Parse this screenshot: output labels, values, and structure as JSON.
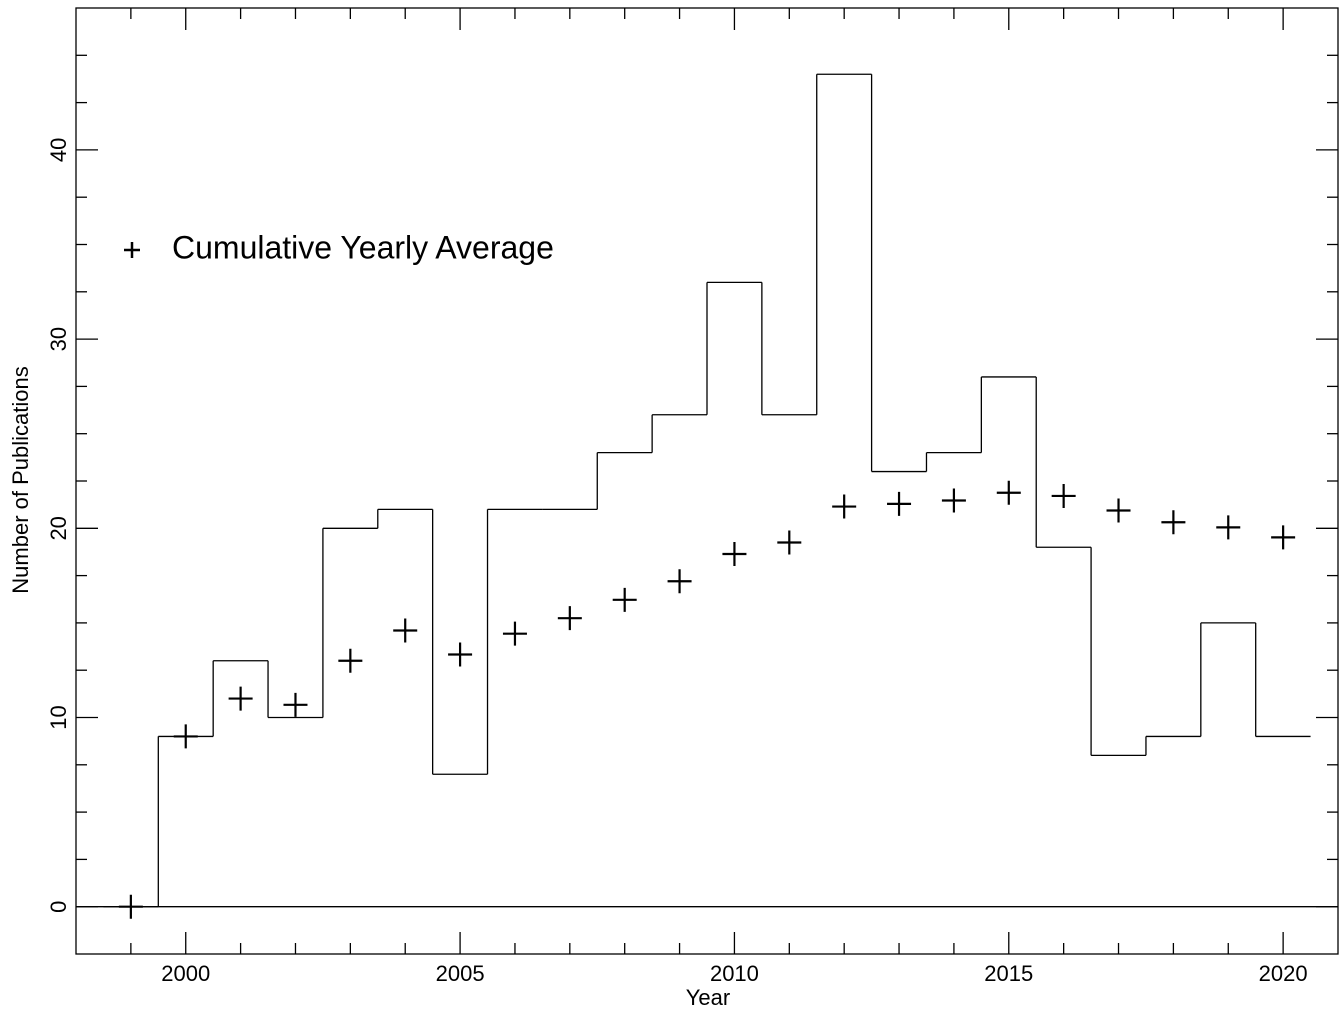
{
  "chart_data": {
    "type": "step",
    "xlabel": "Year",
    "ylabel": "Number of Publications",
    "x": [
      1999,
      2000,
      2001,
      2002,
      2003,
      2004,
      2005,
      2006,
      2007,
      2008,
      2009,
      2010,
      2011,
      2012,
      2013,
      2014,
      2015,
      2016,
      2017,
      2018,
      2019,
      2020
    ],
    "series": [
      {
        "type": "step",
        "color": "#000000",
        "values": [
          0,
          9,
          13,
          10,
          20,
          21,
          7,
          21,
          21,
          24,
          26,
          33,
          26,
          44,
          23,
          24,
          28,
          19,
          8,
          9,
          15,
          9
        ]
      },
      {
        "type": "scatter",
        "name": "Cumulative Yearly Average",
        "marker": "+",
        "color": "#000000",
        "values": [
          0,
          9,
          11,
          10.67,
          13,
          14.6,
          13.33,
          14.43,
          15.25,
          16.22,
          17.2,
          18.64,
          19.25,
          21.15,
          21.29,
          21.47,
          21.88,
          21.71,
          20.94,
          20.32,
          20.05,
          19.52
        ]
      }
    ],
    "xlim": [
      1998,
      2021
    ],
    "ylim": [
      -2.5,
      47.5
    ],
    "xticks": [
      2000,
      2005,
      2010,
      2015,
      2020
    ],
    "yticks": [
      0,
      10,
      20,
      30,
      40
    ],
    "xminorticks": [
      1999,
      2001,
      2002,
      2003,
      2004,
      2006,
      2007,
      2008,
      2009,
      2011,
      2012,
      2013,
      2014,
      2016,
      2017,
      2018,
      2019
    ],
    "yminorticks": [
      2.5,
      5,
      7.5,
      12.5,
      15,
      17.5,
      22.5,
      25,
      27.5,
      32.5,
      35,
      37.5,
      42.5,
      45
    ],
    "zero_line": true,
    "legend": "upper left"
  }
}
